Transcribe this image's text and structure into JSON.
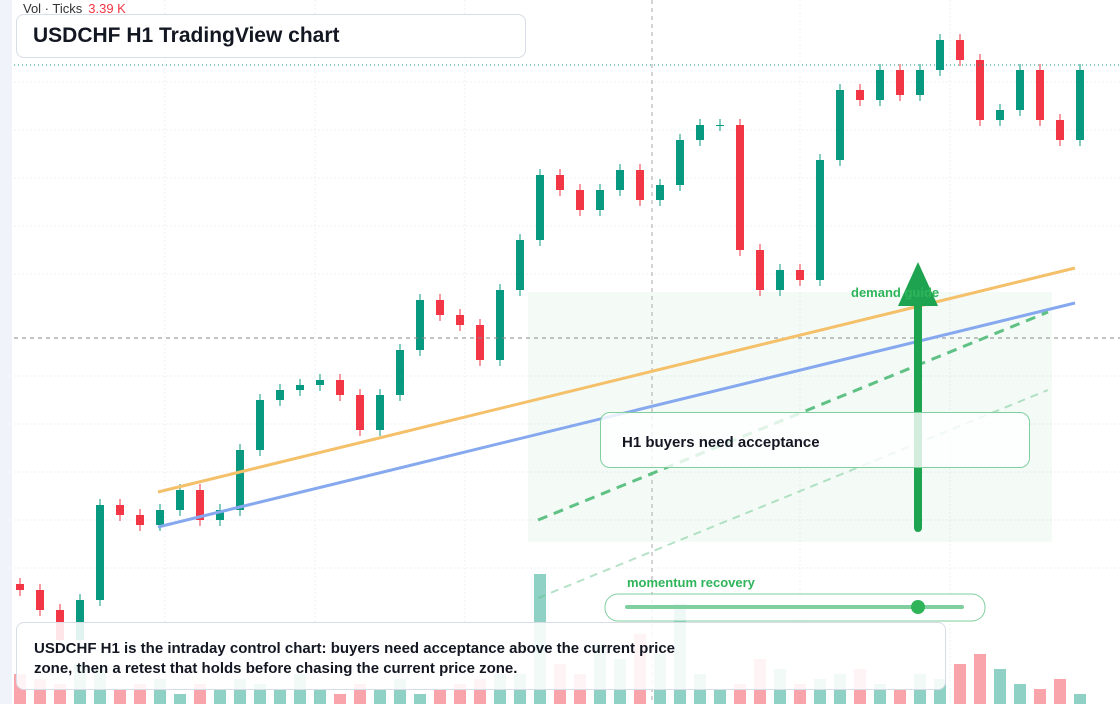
{
  "header": {
    "volume_label": "Vol · Ticks",
    "volume_value": "3.39 K",
    "title": "USDCHF H1 TradingView chart"
  },
  "chart_data": {
    "type": "candlestick",
    "ylim": [
      0,
      704
    ],
    "open": [
      120,
      114,
      94,
      64,
      104,
      199,
      189,
      179,
      194,
      214,
      184,
      194,
      254,
      304,
      314,
      319,
      324,
      309,
      274,
      309,
      354,
      404,
      389,
      379,
      344,
      414,
      464,
      529,
      514,
      494,
      514,
      534,
      504,
      519,
      564,
      579,
      579,
      454,
      414,
      434,
      424,
      544,
      614,
      604,
      634,
      609,
      634,
      664,
      644,
      584,
      594,
      634,
      584,
      564
    ],
    "high": [
      126,
      120,
      100,
      110,
      205,
      205,
      195,
      200,
      220,
      220,
      200,
      260,
      310,
      320,
      325,
      330,
      330,
      315,
      315,
      360,
      410,
      410,
      395,
      385,
      420,
      470,
      535,
      535,
      520,
      520,
      540,
      540,
      525,
      570,
      585,
      585,
      585,
      460,
      440,
      440,
      550,
      620,
      620,
      640,
      640,
      640,
      670,
      670,
      650,
      600,
      640,
      640,
      590,
      640
    ],
    "low": [
      108,
      88,
      58,
      58,
      98,
      183,
      173,
      173,
      188,
      178,
      178,
      188,
      248,
      298,
      308,
      313,
      303,
      268,
      268,
      303,
      348,
      383,
      373,
      338,
      338,
      408,
      458,
      508,
      488,
      488,
      508,
      498,
      498,
      513,
      558,
      573,
      448,
      408,
      408,
      418,
      418,
      538,
      598,
      598,
      603,
      603,
      628,
      638,
      578,
      578,
      588,
      578,
      558,
      558
    ],
    "close": [
      114,
      94,
      64,
      104,
      199,
      189,
      179,
      194,
      214,
      184,
      194,
      254,
      304,
      314,
      319,
      324,
      309,
      274,
      309,
      354,
      404,
      389,
      379,
      344,
      414,
      464,
      529,
      514,
      494,
      514,
      534,
      504,
      519,
      564,
      579,
      579,
      454,
      414,
      434,
      424,
      544,
      614,
      604,
      634,
      609,
      634,
      664,
      644,
      584,
      594,
      634,
      584,
      564,
      634
    ],
    "volume": [
      30,
      25,
      20,
      40,
      35,
      15,
      20,
      25,
      10,
      20,
      15,
      25,
      20,
      15,
      30,
      15,
      10,
      20,
      15,
      25,
      10,
      15,
      20,
      25,
      30,
      30,
      130,
      40,
      30,
      60,
      45,
      70,
      50,
      100,
      30,
      15,
      20,
      45,
      35,
      20,
      25,
      30,
      35,
      20,
      15,
      30,
      25,
      40,
      50,
      35,
      20,
      15,
      25,
      10
    ],
    "volume_lim": [
      0,
      150
    ],
    "up_color": "#089981",
    "down_color": "#f23645"
  },
  "annotations": {
    "zone_label": "demand guide",
    "callout": "H1 buyers need acceptance",
    "slider_label": "momentum recovery",
    "summary": "USDCHF H1 is the intraday control chart: buyers need acceptance above the current price zone, then a retest that holds before chasing the current price zone."
  }
}
